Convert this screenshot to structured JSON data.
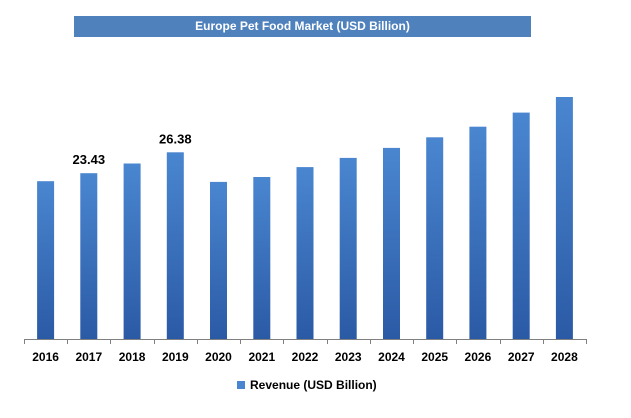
{
  "chart_data": {
    "type": "bar",
    "title": "Europe Pet Food Market (USD Billion)",
    "xlabel": "",
    "ylabel": "",
    "categories": [
      "2016",
      "2017",
      "2018",
      "2019",
      "2020",
      "2021",
      "2022",
      "2023",
      "2024",
      "2025",
      "2026",
      "2027",
      "2028"
    ],
    "series": [
      {
        "name": "Revenue (USD Billion)",
        "values": [
          22.3,
          23.43,
          24.8,
          26.38,
          22.2,
          22.9,
          24.3,
          25.6,
          27.0,
          28.5,
          30.0,
          32.0,
          34.2
        ]
      }
    ],
    "data_labels": [
      {
        "category": "2017",
        "text": "23.43"
      },
      {
        "category": "2019",
        "text": "26.38"
      }
    ],
    "ylim": [
      0,
      34.2
    ],
    "grid": false,
    "legend_position": "bottom",
    "colors": {
      "bar_top": "#4a86d0",
      "bar_bottom": "#2b5aa5",
      "title_background": "#4f81bd",
      "title_text": "#ffffff",
      "axis": "#808080"
    }
  }
}
